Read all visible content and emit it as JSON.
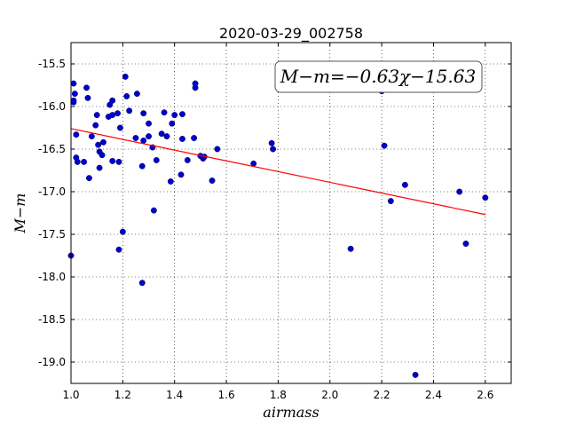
{
  "chart_data": {
    "type": "scatter",
    "title": "2020-03-29_002758",
    "xlabel": "airmass",
    "ylabel": "M−m",
    "xlim": [
      1.0,
      2.7
    ],
    "ylim": [
      -19.25,
      -15.25
    ],
    "xticks": [
      "1.0",
      "1.2",
      "1.4",
      "1.6",
      "1.8",
      "2.0",
      "2.2",
      "2.4",
      "2.6"
    ],
    "yticks": [
      "-15.5",
      "-16.0",
      "-16.5",
      "-17.0",
      "-17.5",
      "-18.0",
      "-18.5",
      "-19.0"
    ],
    "grid": true,
    "annotation": "M−m=−0.63χ−15.63",
    "fit": {
      "slope": -0.63,
      "intercept": -15.63,
      "x_range": [
        1.0,
        2.6
      ],
      "color": "#ff0000"
    },
    "point_color": "#0000cc",
    "points": [
      [
        1.0,
        -17.75
      ],
      [
        1.01,
        -15.73
      ],
      [
        1.01,
        -15.95
      ],
      [
        1.01,
        -15.93
      ],
      [
        1.015,
        -15.85
      ],
      [
        1.02,
        -16.33
      ],
      [
        1.02,
        -16.6
      ],
      [
        1.025,
        -16.65
      ],
      [
        1.05,
        -16.65
      ],
      [
        1.06,
        -15.78
      ],
      [
        1.065,
        -15.9
      ],
      [
        1.07,
        -16.84
      ],
      [
        1.08,
        -16.35
      ],
      [
        1.095,
        -16.22
      ],
      [
        1.1,
        -16.1
      ],
      [
        1.105,
        -16.45
      ],
      [
        1.11,
        -16.53
      ],
      [
        1.11,
        -16.72
      ],
      [
        1.12,
        -16.57
      ],
      [
        1.125,
        -16.42
      ],
      [
        1.145,
        -16.12
      ],
      [
        1.15,
        -15.98
      ],
      [
        1.16,
        -16.1
      ],
      [
        1.16,
        -15.93
      ],
      [
        1.16,
        -16.64
      ],
      [
        1.18,
        -16.08
      ],
      [
        1.185,
        -16.65
      ],
      [
        1.185,
        -17.68
      ],
      [
        1.19,
        -16.25
      ],
      [
        1.2,
        -17.47
      ],
      [
        1.21,
        -15.65
      ],
      [
        1.215,
        -15.88
      ],
      [
        1.225,
        -16.05
      ],
      [
        1.25,
        -16.37
      ],
      [
        1.255,
        -15.85
      ],
      [
        1.275,
        -16.7
      ],
      [
        1.275,
        -18.07
      ],
      [
        1.28,
        -16.08
      ],
      [
        1.28,
        -16.4
      ],
      [
        1.3,
        -16.35
      ],
      [
        1.3,
        -16.2
      ],
      [
        1.315,
        -16.48
      ],
      [
        1.32,
        -17.22
      ],
      [
        1.33,
        -16.63
      ],
      [
        1.35,
        -16.32
      ],
      [
        1.36,
        -16.07
      ],
      [
        1.37,
        -16.35
      ],
      [
        1.385,
        -16.88
      ],
      [
        1.39,
        -16.2
      ],
      [
        1.4,
        -16.1
      ],
      [
        1.425,
        -16.8
      ],
      [
        1.43,
        -16.38
      ],
      [
        1.43,
        -16.09
      ],
      [
        1.45,
        -16.63
      ],
      [
        1.475,
        -16.37
      ],
      [
        1.48,
        -15.73
      ],
      [
        1.48,
        -15.78
      ],
      [
        1.5,
        -16.58
      ],
      [
        1.51,
        -16.61
      ],
      [
        1.515,
        -16.59
      ],
      [
        1.545,
        -16.87
      ],
      [
        1.565,
        -16.5
      ],
      [
        1.705,
        -16.67
      ],
      [
        1.775,
        -16.43
      ],
      [
        1.78,
        -16.5
      ],
      [
        2.08,
        -17.67
      ],
      [
        2.2,
        -15.82
      ],
      [
        2.21,
        -16.46
      ],
      [
        2.235,
        -17.11
      ],
      [
        2.29,
        -16.92
      ],
      [
        2.33,
        -19.15
      ],
      [
        2.5,
        -17.0
      ],
      [
        2.525,
        -17.61
      ],
      [
        2.6,
        -17.07
      ]
    ]
  }
}
